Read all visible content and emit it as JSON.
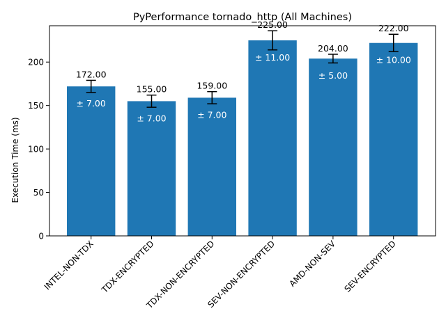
{
  "chart_data": {
    "type": "bar",
    "title": "PyPerformance tornado_http (All Machines)",
    "xlabel": "",
    "ylabel": "Execution Time (ms)",
    "categories": [
      "INTEL-NON-TDX",
      "TDX-ENCRYPTED",
      "TDX-NON-ENCRYPTED",
      "SEV-NON-ENCRYPTED",
      "AMD-NON-SEV",
      "SEV-ENCRYPTED"
    ],
    "values": [
      172,
      155,
      159,
      225,
      204,
      222
    ],
    "errors": [
      7,
      7,
      7,
      11,
      5,
      10
    ],
    "value_labels": [
      "172.00",
      "155.00",
      "159.00",
      "225.00",
      "204.00",
      "222.00"
    ],
    "error_labels": [
      "± 7.00",
      "± 7.00",
      "± 7.00",
      "± 11.00",
      "± 5.00",
      "± 10.00"
    ],
    "ylim": [
      0,
      241.8
    ],
    "yticks": [
      0,
      50,
      100,
      150,
      200
    ],
    "ytick_labels": [
      "0",
      "50",
      "100",
      "150",
      "200"
    ],
    "bar_color": "#1f77b4",
    "grid": false,
    "legend": "none"
  }
}
